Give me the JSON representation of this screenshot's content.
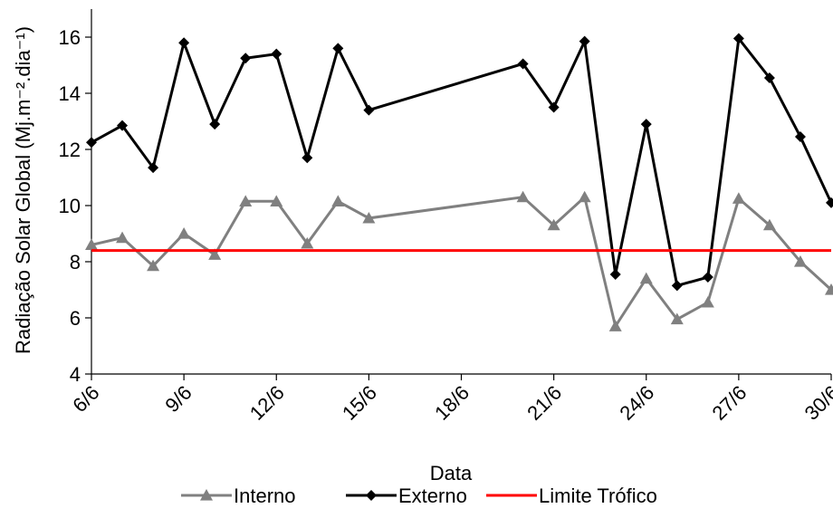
{
  "chart_data": {
    "type": "line",
    "xlabel": "Data",
    "ylabel": "Radiação Solar Global (Mj.m⁻².dia⁻¹)",
    "ylim": [
      4,
      17
    ],
    "yticks": [
      4,
      6,
      8,
      10,
      12,
      14,
      16
    ],
    "xlim": [
      "6/6",
      "30/6"
    ],
    "xtick_labels": [
      "6/6",
      "9/6",
      "12/6",
      "15/6",
      "18/6",
      "21/6",
      "24/6",
      "27/6",
      "30/6"
    ],
    "grid": false,
    "legend": "bottom",
    "series": [
      {
        "name": "Interno",
        "color": "#808080",
        "marker": "triangle",
        "x": [
          "6/6",
          "7/6",
          "8/6",
          "9/6",
          "10/6",
          "11/6",
          "12/6",
          "13/6",
          "14/6",
          "15/6",
          "20/6",
          "21/6",
          "22/6",
          "23/6",
          "24/6",
          "25/6",
          "26/6",
          "27/6",
          "28/6",
          "29/6",
          "30/6"
        ],
        "values": [
          8.6,
          8.85,
          7.85,
          9.0,
          8.25,
          10.15,
          10.15,
          8.65,
          10.15,
          9.55,
          10.3,
          9.3,
          10.3,
          5.7,
          7.4,
          5.95,
          6.55,
          10.25,
          9.3,
          8.0,
          7.0
        ]
      },
      {
        "name": "Externo",
        "color": "#000000",
        "marker": "diamond",
        "x": [
          "6/6",
          "7/6",
          "8/6",
          "9/6",
          "10/6",
          "11/6",
          "12/6",
          "13/6",
          "14/6",
          "15/6",
          "20/6",
          "21/6",
          "22/6",
          "23/6",
          "24/6",
          "25/6",
          "26/6",
          "27/6",
          "28/6",
          "29/6",
          "30/6"
        ],
        "values": [
          12.25,
          12.85,
          11.35,
          15.8,
          12.9,
          15.25,
          15.4,
          11.7,
          15.6,
          13.4,
          15.05,
          13.5,
          15.85,
          7.55,
          12.9,
          7.15,
          7.45,
          15.95,
          14.55,
          12.45,
          10.1
        ]
      },
      {
        "name": "Limite Trófico",
        "color": "#ff0000",
        "marker": "none",
        "x": [
          "6/6",
          "30/6"
        ],
        "values": [
          8.4,
          8.4
        ]
      }
    ]
  }
}
